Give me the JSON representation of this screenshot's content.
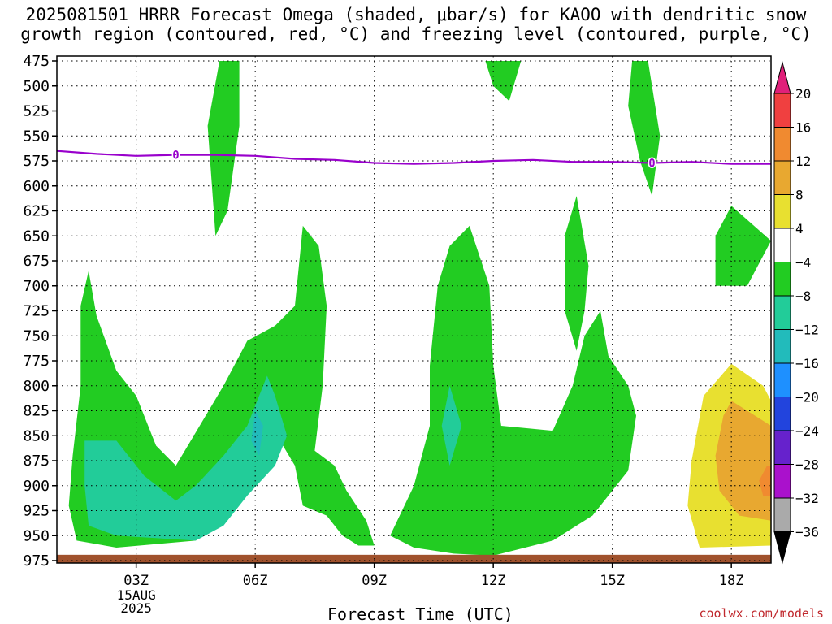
{
  "chart_data": {
    "type": "heatmap",
    "title": "2025081501 HRRR Forecast Omega (shaded, μbar/s) for KAOO with dendritic snow growth region (contoured, red, °C) and freezing level (contoured, purple, °C)",
    "xlabel": "Forecast Time (UTC)",
    "ylabel": "",
    "x_ticks": [
      "03Z",
      "06Z",
      "09Z",
      "12Z",
      "15Z",
      "18Z"
    ],
    "x_date_label": [
      "15AUG",
      "2025"
    ],
    "y_ticks": [
      475,
      500,
      525,
      550,
      575,
      600,
      625,
      650,
      675,
      700,
      725,
      750,
      775,
      800,
      825,
      850,
      875,
      900,
      925,
      950,
      975
    ],
    "ylim": [
      975,
      475
    ],
    "xlim_hours": [
      1,
      19
    ],
    "y_reversed": true,
    "grid": true,
    "colorbar": {
      "levels": [
        20,
        16,
        12,
        8,
        4,
        -4,
        -8,
        -12,
        -16,
        -20,
        -24,
        -28,
        -32,
        -36
      ],
      "label_list": [
        "20",
        "16",
        "12",
        "8",
        "4",
        "−4",
        "−8",
        "−12",
        "−16",
        "−20",
        "−24",
        "−28",
        "−32",
        "−36"
      ],
      "colors": [
        "#e0207a",
        "#f04040",
        "#f08a30",
        "#e8a830",
        "#e8e030",
        "#ffffff",
        "#22cc22",
        "#22cc99",
        "#22bbbb",
        "#1e90ff",
        "#2244dd",
        "#6622cc",
        "#aa11cc",
        "#aaaaaa"
      ],
      "overflow_high_color": "#e0207a",
      "overflow_low_color": "#000000"
    },
    "freezing_level": {
      "label": "0",
      "points": [
        [
          1,
          565
        ],
        [
          2,
          568
        ],
        [
          3,
          570
        ],
        [
          4,
          569
        ],
        [
          5,
          569
        ],
        [
          6,
          570
        ],
        [
          7,
          573
        ],
        [
          8,
          574
        ],
        [
          9,
          577
        ],
        [
          10,
          578
        ],
        [
          11,
          577
        ],
        [
          12,
          575
        ],
        [
          13,
          574
        ],
        [
          14,
          576
        ],
        [
          15,
          576
        ],
        [
          16,
          577
        ],
        [
          17,
          576
        ],
        [
          18,
          578
        ],
        [
          19,
          578
        ]
      ],
      "color": "#9900cc"
    },
    "omega_regions": [
      {
        "value_class": "-4 to -8",
        "color": "#22cc22",
        "polygon": [
          [
            1.8,
            685
          ],
          [
            2.0,
            730
          ],
          [
            2.5,
            785
          ],
          [
            3.0,
            810
          ],
          [
            3.5,
            860
          ],
          [
            4.0,
            880
          ],
          [
            4.6,
            840
          ],
          [
            5.2,
            800
          ],
          [
            5.8,
            755
          ],
          [
            6.5,
            740
          ],
          [
            7.0,
            720
          ],
          [
            7.2,
            640
          ],
          [
            7.6,
            660
          ],
          [
            7.8,
            720
          ],
          [
            7.7,
            800
          ],
          [
            7.5,
            865
          ],
          [
            8.0,
            880
          ],
          [
            8.3,
            905
          ],
          [
            8.8,
            935
          ],
          [
            9.0,
            960
          ],
          [
            8.6,
            960
          ],
          [
            8.2,
            950
          ],
          [
            7.8,
            930
          ],
          [
            7.2,
            920
          ],
          [
            7.0,
            880
          ],
          [
            6.4,
            840
          ],
          [
            6.0,
            895
          ],
          [
            5.5,
            925
          ],
          [
            4.5,
            955
          ],
          [
            2.5,
            962
          ],
          [
            1.5,
            955
          ],
          [
            1.3,
            920
          ],
          [
            1.4,
            870
          ],
          [
            1.6,
            800
          ],
          [
            1.6,
            720
          ]
        ]
      },
      {
        "value_class": "-4 to -8",
        "color": "#22cc22",
        "polygon": [
          [
            9.4,
            950
          ],
          [
            10.0,
            900
          ],
          [
            10.4,
            840
          ],
          [
            10.4,
            780
          ],
          [
            10.6,
            700
          ],
          [
            10.9,
            660
          ],
          [
            11.4,
            640
          ],
          [
            11.9,
            700
          ],
          [
            12.0,
            780
          ],
          [
            12.2,
            840
          ],
          [
            13.5,
            845
          ],
          [
            14.0,
            800
          ],
          [
            14.3,
            750
          ],
          [
            14.7,
            725
          ],
          [
            14.9,
            770
          ],
          [
            15.4,
            800
          ],
          [
            15.6,
            830
          ],
          [
            15.4,
            885
          ],
          [
            14.5,
            930
          ],
          [
            13.5,
            955
          ],
          [
            12.0,
            970
          ],
          [
            11.0,
            968
          ],
          [
            10.0,
            962
          ]
        ]
      },
      {
        "value_class": "-4 to -8",
        "color": "#22cc22",
        "polygon": [
          [
            13.8,
            725
          ],
          [
            13.8,
            650
          ],
          [
            14.1,
            610
          ],
          [
            14.4,
            680
          ],
          [
            14.3,
            725
          ],
          [
            14.1,
            765
          ]
        ]
      },
      {
        "value_class": "-4 to -8",
        "color": "#22cc22",
        "polygon": [
          [
            17.6,
            700
          ],
          [
            17.6,
            650
          ],
          [
            18.0,
            620
          ],
          [
            19.0,
            655
          ],
          [
            18.4,
            700
          ]
        ]
      },
      {
        "value_class": "-4 to -8",
        "color": "#22cc22",
        "polygon": [
          [
            5.1,
            475
          ],
          [
            5.6,
            475
          ],
          [
            5.6,
            540
          ],
          [
            5.3,
            625
          ],
          [
            5.0,
            650
          ],
          [
            4.8,
            540
          ]
        ]
      },
      {
        "value_class": "-4 to -8",
        "color": "#22cc22",
        "polygon": [
          [
            11.8,
            475
          ],
          [
            12.7,
            475
          ],
          [
            12.4,
            515
          ],
          [
            12.0,
            500
          ]
        ]
      },
      {
        "value_class": "-4 to -8",
        "color": "#22cc22",
        "polygon": [
          [
            15.5,
            475
          ],
          [
            15.9,
            475
          ],
          [
            16.2,
            550
          ],
          [
            16.0,
            610
          ],
          [
            15.7,
            575
          ],
          [
            15.4,
            520
          ]
        ]
      },
      {
        "value_class": "-8 to -12",
        "color": "#22cc99",
        "polygon": [
          [
            1.7,
            855
          ],
          [
            2.5,
            855
          ],
          [
            3.2,
            890
          ],
          [
            4.0,
            915
          ],
          [
            4.5,
            900
          ],
          [
            5.2,
            870
          ],
          [
            5.8,
            840
          ],
          [
            6.3,
            790
          ],
          [
            6.5,
            810
          ],
          [
            6.8,
            850
          ],
          [
            6.5,
            880
          ],
          [
            5.8,
            910
          ],
          [
            5.2,
            940
          ],
          [
            4.5,
            955
          ],
          [
            2.5,
            950
          ],
          [
            1.8,
            940
          ],
          [
            1.7,
            900
          ]
        ]
      },
      {
        "value_class": "-8 to -12",
        "color": "#22cc99",
        "polygon": [
          [
            10.7,
            840
          ],
          [
            10.9,
            800
          ],
          [
            11.2,
            840
          ],
          [
            10.9,
            880
          ]
        ]
      },
      {
        "value_class": "-12 to -16",
        "color": "#22bbbb",
        "polygon": [
          [
            5.9,
            855
          ],
          [
            6.0,
            825
          ],
          [
            6.2,
            840
          ],
          [
            6.1,
            870
          ]
        ]
      }
    ],
    "positive_regions": [
      {
        "value_class": "4 to 8",
        "color": "#e8e030",
        "polygon": [
          [
            17.0,
            875
          ],
          [
            17.3,
            810
          ],
          [
            18.0,
            778
          ],
          [
            18.8,
            800
          ],
          [
            19.0,
            815
          ],
          [
            19.0,
            960
          ],
          [
            17.2,
            962
          ],
          [
            16.9,
            920
          ]
        ]
      },
      {
        "value_class": "8 to 12",
        "color": "#e8a830",
        "polygon": [
          [
            17.6,
            870
          ],
          [
            17.8,
            830
          ],
          [
            18.0,
            815
          ],
          [
            19.0,
            840
          ],
          [
            19.0,
            935
          ],
          [
            18.2,
            930
          ],
          [
            17.7,
            905
          ]
        ]
      },
      {
        "value_class": "12 to 16",
        "color": "#f08a30",
        "polygon": [
          [
            18.7,
            895
          ],
          [
            18.9,
            880
          ],
          [
            19.0,
            880
          ],
          [
            19.0,
            910
          ],
          [
            18.8,
            910
          ]
        ]
      }
    ],
    "ground": {
      "from": 970,
      "to": 975,
      "color": "#a0522d"
    }
  },
  "credit": "coolwx.com/models"
}
